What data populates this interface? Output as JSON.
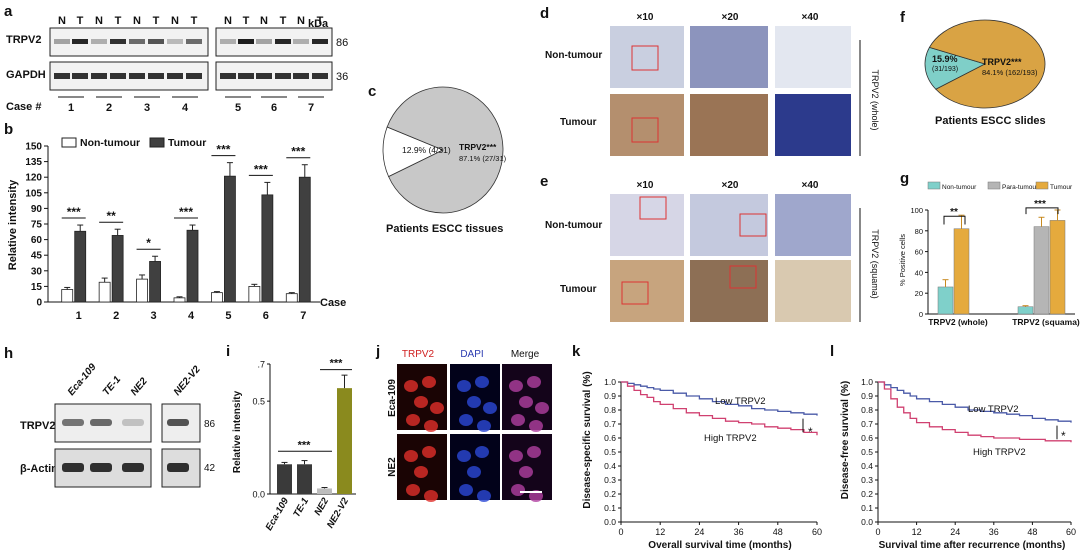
{
  "panel_labels": {
    "a": "a",
    "b": "b",
    "c": "c",
    "d": "d",
    "e": "e",
    "f": "f",
    "g": "g",
    "h": "h",
    "i": "i",
    "j": "j",
    "k": "k",
    "l": "l"
  },
  "panel_a": {
    "lanes_left": [
      "N",
      "T",
      "N",
      "T",
      "N",
      "T",
      "N",
      "T"
    ],
    "lanes_right": [
      "N",
      "T",
      "N",
      "T",
      "N",
      "T"
    ],
    "kda": "kDa",
    "trpv2": "TRPV2",
    "gapdh": "GAPDH",
    "size1": "86",
    "size2": "36",
    "case_label": "Case #",
    "cases": [
      "1",
      "2",
      "3",
      "4",
      "5",
      "6",
      "7"
    ]
  },
  "panel_b": {
    "legend": [
      "Non-tumour",
      "Tumour"
    ],
    "ylabel": "Relative intensity",
    "xlabel": "Case",
    "yticks": [
      "0",
      "15",
      "30",
      "45",
      "60",
      "75",
      "90",
      "105",
      "120",
      "135",
      "150"
    ],
    "sig": [
      "***",
      "**",
      "*",
      "***",
      "***",
      "***",
      "***"
    ]
  },
  "panel_c": {
    "left": "12.9% (4/31)",
    "right_title": "TRPV2***",
    "right_val": "87.1% (27/31)",
    "caption": "Patients ESCC tissues"
  },
  "panel_d": {
    "mags": [
      "×10",
      "×20",
      "×40"
    ],
    "rows": [
      "Non-tumour",
      "Tumour"
    ],
    "side": "TRPV2 (whole)"
  },
  "panel_e": {
    "mags": [
      "×10",
      "×20",
      "×40"
    ],
    "rows": [
      "Non-tumour",
      "Tumour"
    ],
    "side": "TRPV2 (squama)"
  },
  "panel_f": {
    "left_pct": "15.9%",
    "left_frac": "(31/193)",
    "right_title": "TRPV2***",
    "right_val": "84.1% (162/193)",
    "caption": "Patients ESCC slides"
  },
  "panel_g": {
    "legend": [
      "Non-tumour",
      "Para-tumour",
      "Tumour"
    ],
    "ylabel": "% Positive cells",
    "yticks": [
      "0",
      "20",
      "40",
      "60",
      "80",
      "100"
    ],
    "groups": [
      "TRPV2 (whole)",
      "TRPV2 (squama)"
    ],
    "sig": [
      "**",
      "***"
    ]
  },
  "panel_h": {
    "lines": [
      "Eca-109",
      "TE-1",
      "NE2",
      "NE2-V2"
    ],
    "trpv2": "TRPV2",
    "actin": "β-Actin",
    "size1": "86",
    "size2": "42"
  },
  "panel_i": {
    "ylabel": "Relative intensity",
    "yticks": [
      "0.0",
      "0.5",
      ".7"
    ],
    "cats": [
      "Eca-109",
      "TE-1",
      "NE2",
      "NE2-V2"
    ],
    "sig": [
      "***",
      "***"
    ]
  },
  "panel_j": {
    "cols": [
      "TRPV2",
      "DAPI",
      "Merge"
    ],
    "rows": [
      "Eca-109",
      "NE2"
    ]
  },
  "panel_k": {
    "ylabel": "Disease-specific survival (%)",
    "xlabel": "Overall survival time (months)",
    "low": "Low TRPV2",
    "high": "High TRPV2",
    "star": "*",
    "yticks": [
      "0.0",
      "0.1",
      "0.2",
      "0.3",
      "0.4",
      "0.5",
      "0.6",
      "0.7",
      "0.8",
      "0.9",
      "1.0"
    ],
    "xticks": [
      "0",
      "12",
      "24",
      "36",
      "48",
      "60"
    ]
  },
  "panel_l": {
    "ylabel": "Disease-free survival (%)",
    "xlabel": "Survival time after recurrence (months)",
    "low": "Low TRPV2",
    "high": "High TRPV2",
    "star": "*",
    "yticks": [
      "0.0",
      "0.1",
      "0.2",
      "0.3",
      "0.4",
      "0.5",
      "0.6",
      "0.7",
      "0.8",
      "0.9",
      "1.0"
    ],
    "xticks": [
      "0",
      "12",
      "24",
      "36",
      "48",
      "60"
    ]
  },
  "chart_data": [
    {
      "type": "bar",
      "panel": "b",
      "categories": [
        "1",
        "2",
        "3",
        "4",
        "5",
        "6",
        "7"
      ],
      "series": [
        {
          "name": "Non-tumour",
          "values": [
            12,
            19,
            22,
            4,
            9,
            15,
            8
          ],
          "errors": [
            2,
            4,
            4,
            1,
            1,
            2,
            1
          ],
          "color": "#ffffff"
        },
        {
          "name": "Tumour",
          "values": [
            68,
            64,
            39,
            69,
            121,
            103,
            120
          ],
          "errors": [
            6,
            6,
            5,
            5,
            13,
            12,
            12
          ],
          "color": "#404040"
        }
      ],
      "xlabel": "Case",
      "ylabel": "Relative intensity",
      "ylim": [
        0,
        150
      ]
    },
    {
      "type": "pie",
      "panel": "c",
      "labels": [
        "12.9% (4/31)",
        "TRPV2***"
      ],
      "values": [
        12.9,
        87.1
      ],
      "colors": [
        "#ffffff",
        "#c8c8c8"
      ]
    },
    {
      "type": "pie",
      "panel": "f",
      "labels": [
        "15.9%",
        "TRPV2***"
      ],
      "values": [
        15.9,
        84.1
      ],
      "colors": [
        "#7fcfc8",
        "#d9a344"
      ]
    },
    {
      "type": "bar",
      "panel": "g",
      "categories": [
        "TRPV2 (whole)",
        "TRPV2 (squama)"
      ],
      "series": [
        {
          "name": "Non-tumour",
          "values": [
            26,
            7
          ],
          "errors": [
            7,
            1
          ],
          "color": "#7fd0ca"
        },
        {
          "name": "Para-tumour",
          "values": [
            null,
            84
          ],
          "errors": [
            null,
            9
          ],
          "color": "#b5b5b5"
        },
        {
          "name": "Tumour",
          "values": [
            82,
            90
          ],
          "errors": [
            13,
            10
          ],
          "color": "#e5aa3d"
        }
      ],
      "ylabel": "% Positive cells",
      "ylim": [
        0,
        100
      ]
    },
    {
      "type": "bar",
      "panel": "i",
      "categories": [
        "Eca-109",
        "TE-1",
        "NE2",
        "NE2-V2"
      ],
      "values": [
        0.16,
        0.16,
        0.03,
        0.57
      ],
      "errors": [
        0.01,
        0.02,
        0.005,
        0.07
      ],
      "colors": [
        "#3a3a3a",
        "#3a3a3a",
        "#bdbdbd",
        "#8a8a1e"
      ],
      "ylabel": "Relative intensity",
      "ylim": [
        0,
        0.7
      ]
    },
    {
      "type": "line",
      "panel": "k",
      "x": [
        0,
        2,
        4,
        6,
        8,
        10,
        12,
        16,
        20,
        24,
        28,
        32,
        36,
        40,
        44,
        48,
        52,
        56,
        60
      ],
      "series": [
        {
          "name": "Low TRPV2",
          "values": [
            1.0,
            0.99,
            0.98,
            0.97,
            0.96,
            0.95,
            0.94,
            0.92,
            0.9,
            0.88,
            0.86,
            0.84,
            0.83,
            0.81,
            0.8,
            0.79,
            0.78,
            0.77,
            0.76
          ],
          "color": "#4a5aa8"
        },
        {
          "name": "High TRPV2",
          "values": [
            1.0,
            0.97,
            0.94,
            0.91,
            0.89,
            0.86,
            0.84,
            0.81,
            0.78,
            0.76,
            0.74,
            0.72,
            0.71,
            0.7,
            0.68,
            0.67,
            0.66,
            0.64,
            0.62
          ],
          "color": "#d04070"
        }
      ],
      "xlabel": "Overall survival time (months)",
      "ylabel": "Disease-specific survival (%)",
      "xlim": [
        0,
        60
      ],
      "ylim": [
        0,
        1
      ]
    },
    {
      "type": "line",
      "panel": "l",
      "x": [
        0,
        2,
        4,
        6,
        8,
        10,
        12,
        16,
        20,
        24,
        28,
        32,
        36,
        40,
        44,
        48,
        52,
        56,
        60
      ],
      "series": [
        {
          "name": "Low TRPV2",
          "values": [
            1.0,
            0.98,
            0.96,
            0.94,
            0.92,
            0.9,
            0.88,
            0.86,
            0.84,
            0.82,
            0.8,
            0.79,
            0.78,
            0.77,
            0.76,
            0.74,
            0.73,
            0.72,
            0.71
          ],
          "color": "#4a5aa8"
        },
        {
          "name": "High TRPV2",
          "values": [
            1.0,
            0.95,
            0.88,
            0.82,
            0.78,
            0.74,
            0.71,
            0.68,
            0.66,
            0.64,
            0.62,
            0.61,
            0.6,
            0.6,
            0.59,
            0.59,
            0.58,
            0.58,
            0.57
          ],
          "color": "#d04070"
        }
      ],
      "xlabel": "Survival time after recurrence (months)",
      "ylabel": "Disease-free survival (%)",
      "xlim": [
        0,
        60
      ],
      "ylim": [
        0,
        1
      ]
    }
  ]
}
